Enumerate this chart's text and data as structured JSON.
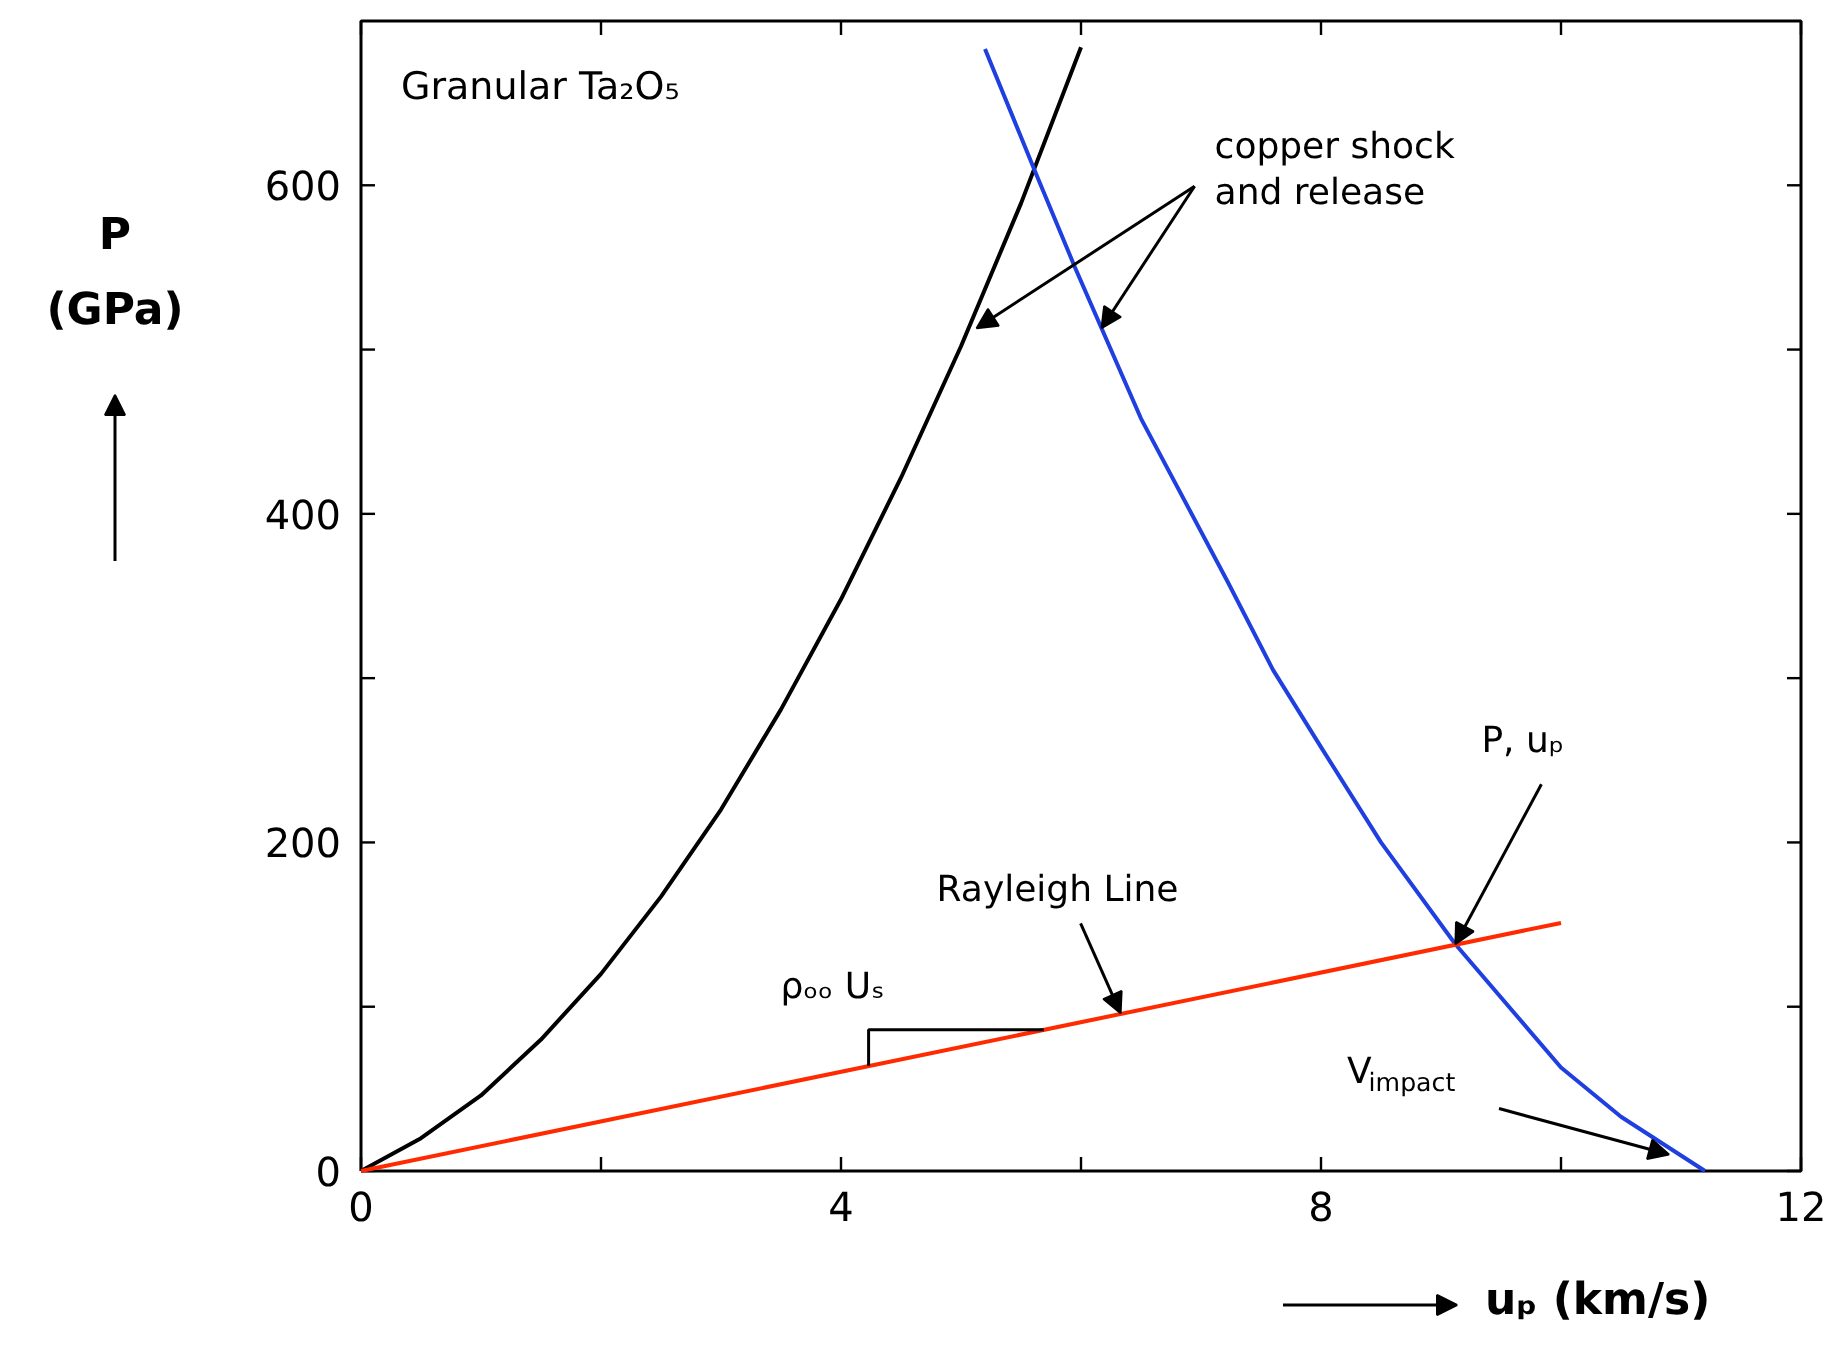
{
  "chart_data": {
    "type": "line",
    "title": "Granular Ta₂O₅",
    "xlabel": "uₚ (km/s)",
    "ylabel": "P (GPa)",
    "xlim": [
      0,
      12
    ],
    "ylim": [
      0,
      700
    ],
    "xticks": [
      0,
      {
        "value": 2,
        "label": null
      },
      4,
      {
        "value": 6,
        "label": null
      },
      8,
      {
        "value": 10,
        "label": null
      },
      12
    ],
    "yticks": [
      0,
      {
        "value": 100,
        "label": null
      },
      200,
      {
        "value": 300,
        "label": null
      },
      400,
      {
        "value": 500,
        "label": null
      },
      600
    ],
    "grid": false,
    "marker": "none",
    "line_style": "solid",
    "series": [
      {
        "color": "#000000",
        "x": [
          0,
          0.5,
          1,
          1.5,
          2,
          2.5,
          3,
          3.5,
          4,
          4.5,
          5,
          5.5,
          6
        ],
        "values": [
          0,
          20,
          46,
          80,
          120,
          167,
          220,
          281,
          348,
          422,
          502,
          589,
          684
        ]
      },
      {
        "color": "#1f3fe0",
        "x": [
          5.2,
          5.62,
          5.95,
          6.5,
          7.22,
          7.6,
          8,
          8.5,
          9.12,
          10,
          10.5,
          11.2
        ],
        "values": [
          683,
          608,
          550,
          458,
          359,
          305,
          258,
          200,
          138,
          63,
          33,
          0
        ]
      },
      {
        "color": "#ff2a00",
        "x": [
          0,
          10
        ],
        "values": [
          0,
          151
        ]
      }
    ],
    "annotations": [
      {
        "text": "copper shock and release",
        "x": 5.13,
        "y": 513
      },
      {
        "text": "Rayleigh Line",
        "x": 6.33,
        "y": 96
      },
      {
        "text": "ρₒₒ Uₛ",
        "x": 4.23,
        "y": 64
      },
      {
        "text": "P, uₚ",
        "x": 9.12,
        "y": 138
      },
      {
        "text": "V$_{impact}$",
        "x": 10.9,
        "y": 10
      }
    ]
  }
}
